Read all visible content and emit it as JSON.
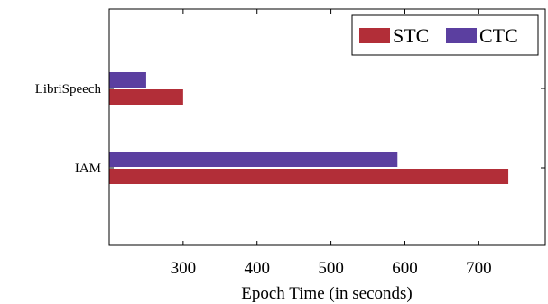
{
  "chart_data": {
    "type": "bar",
    "orientation": "horizontal",
    "categories": [
      "LibriSpeech",
      "IAM"
    ],
    "series": [
      {
        "name": "STC",
        "color": "#b22e38",
        "values": [
          300,
          740
        ]
      },
      {
        "name": "CTC",
        "color": "#5b3fa0",
        "values": [
          250,
          590
        ]
      }
    ],
    "xlabel": "Epoch Time (in seconds)",
    "ylabel": "",
    "xlim": [
      200,
      790
    ],
    "xticks": [
      300,
      400,
      500,
      600,
      700
    ],
    "legend_position": "top-right",
    "grid": false
  }
}
